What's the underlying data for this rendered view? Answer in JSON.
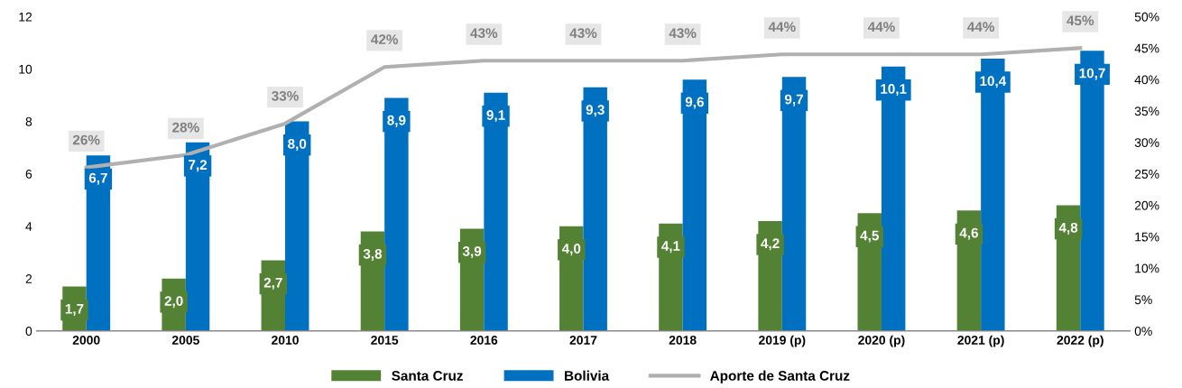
{
  "chart_data": {
    "type": "bar",
    "categories": [
      "2000",
      "2005",
      "2010",
      "2015",
      "2016",
      "2017",
      "2018",
      "2019 (p)",
      "2020 (p)",
      "2021 (p)",
      "2022 (p)"
    ],
    "series": [
      {
        "name": "Santa Cruz",
        "color": "#548235",
        "values": [
          1.7,
          2.0,
          2.7,
          3.8,
          3.9,
          4.0,
          4.1,
          4.2,
          4.5,
          4.6,
          4.8
        ],
        "value_labels": [
          "1,7",
          "2,0",
          "2,7",
          "3,8",
          "3,9",
          "4,0",
          "4,1",
          "4,2",
          "4,5",
          "4,6",
          "4,8"
        ]
      },
      {
        "name": "Bolivia",
        "color": "#0070c0",
        "values": [
          6.7,
          7.2,
          8.0,
          8.9,
          9.1,
          9.3,
          9.6,
          9.7,
          10.1,
          10.4,
          10.7
        ],
        "value_labels": [
          "6,7",
          "7,2",
          "8,0",
          "8,9",
          "9,1",
          "9,3",
          "9,6",
          "9,7",
          "10,1",
          "10,4",
          "10,7"
        ]
      },
      {
        "name": "Aporte de Santa Cruz",
        "type": "line",
        "axis": "y2",
        "color": "#b0b0b0",
        "values": [
          26,
          28,
          33,
          42,
          43,
          43,
          43,
          44,
          44,
          44,
          45
        ],
        "value_labels": [
          "26%",
          "28%",
          "33%",
          "42%",
          "43%",
          "43%",
          "43%",
          "44%",
          "44%",
          "44%",
          "45%"
        ]
      }
    ],
    "ylim": [
      0,
      12
    ],
    "yticks": [
      0,
      2,
      4,
      6,
      8,
      10,
      12
    ],
    "y2lim": [
      0,
      50
    ],
    "y2ticks": [
      {
        "value": 0,
        "label": "0%"
      },
      {
        "value": 5,
        "label": "5%"
      },
      {
        "value": 10,
        "label": "10%"
      },
      {
        "value": 15,
        "label": "15%"
      },
      {
        "value": 20,
        "label": "20%"
      },
      {
        "value": 25,
        "label": "25%"
      },
      {
        "value": 30,
        "label": "30%"
      },
      {
        "value": 35,
        "label": "35%"
      },
      {
        "value": 40,
        "label": "40%"
      },
      {
        "value": 45,
        "label": "45%"
      },
      {
        "value": 50,
        "label": "50%"
      }
    ],
    "grid": false,
    "legend": "bottom"
  }
}
